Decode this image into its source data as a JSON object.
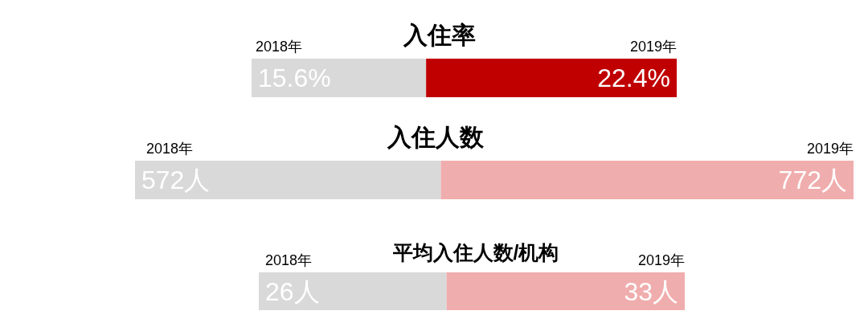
{
  "chart_data": [
    {
      "type": "bar",
      "title": "入住率",
      "orientation": "horizontal",
      "stacked": true,
      "categories": [
        null
      ],
      "series": [
        {
          "name": "2018年",
          "color": "#d9d9d9",
          "values": [
            15.6
          ],
          "value_labels": [
            "15.6%"
          ]
        },
        {
          "name": "2019年",
          "color": "#c00000",
          "values": [
            22.4
          ],
          "value_labels": [
            "22.4%"
          ]
        }
      ]
    },
    {
      "type": "bar",
      "title": "入住人数",
      "orientation": "horizontal",
      "stacked": true,
      "categories": [
        null
      ],
      "series": [
        {
          "name": "2018年",
          "color": "#d9d9d9",
          "values": [
            572
          ],
          "value_labels": [
            "572人"
          ]
        },
        {
          "name": "2019年",
          "color": "#f0adad",
          "values": [
            772
          ],
          "value_labels": [
            "772人"
          ]
        }
      ]
    },
    {
      "type": "bar",
      "title": "平均入住人数/机构",
      "orientation": "horizontal",
      "stacked": true,
      "categories": [
        null
      ],
      "series": [
        {
          "name": "2018年",
          "color": "#d9d9d9",
          "values": [
            26
          ],
          "value_labels": [
            "26人"
          ]
        },
        {
          "name": "2019年",
          "color": "#f0adad",
          "values": [
            33
          ],
          "value_labels": [
            "33人"
          ]
        }
      ]
    }
  ]
}
